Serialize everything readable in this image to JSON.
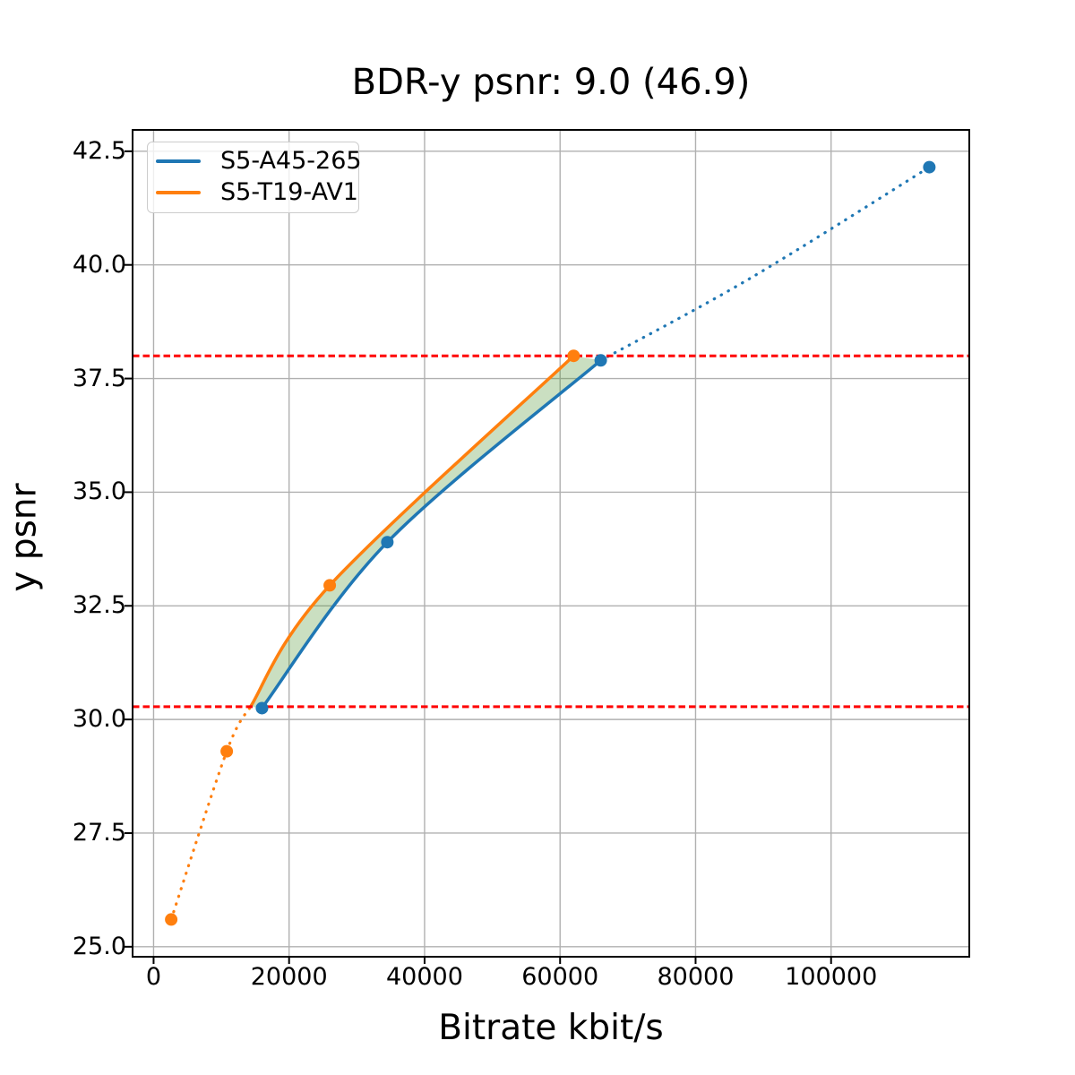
{
  "figure": {
    "title": "BDR-y psnr: 9.0 (46.9)",
    "xlabel": "Bitrate kbit/s",
    "ylabel": "y psnr"
  },
  "colors": {
    "grid": "#b0b0b0",
    "spine": "#000000",
    "background": "#ffffff",
    "fill": "#509632",
    "fill_opacity": 0.3,
    "hline": "#ff0000",
    "legend_border": "#cccccc"
  },
  "chart_data": {
    "type": "line",
    "title": "BDR-y psnr: 9.0 (46.9)",
    "xlabel": "Bitrate kbit/s",
    "ylabel": "y psnr",
    "grid": true,
    "legend_position": "upper left",
    "xlim": [
      -3100,
      120400
    ],
    "ylim": [
      24.78,
      42.97
    ],
    "xticks": [
      0,
      20000,
      40000,
      60000,
      80000,
      100000
    ],
    "yticks": [
      25.0,
      27.5,
      30.0,
      32.5,
      35.0,
      37.5,
      40.0,
      42.5
    ],
    "hlines": {
      "values": [
        30.28,
        38.0
      ],
      "color": "#ff0000",
      "style": "dashed",
      "description": "overlapping psnr interval bounds used for BD-rate computation"
    },
    "fill_between": {
      "color": "#509632",
      "opacity": 0.3,
      "description": "shaded area between the two RD curves across the overlapping psnr range 30.28 to 38.0"
    },
    "series": [
      {
        "name": "S5-A45-265",
        "color": "#1f77b4",
        "points": [
          [
            16000,
            30.25
          ],
          [
            34500,
            33.9
          ],
          [
            66000,
            37.9
          ],
          [
            114500,
            42.15
          ]
        ],
        "solid_segment": [
          [
            16000,
            30.25
          ],
          [
            34500,
            33.9
          ],
          [
            66000,
            37.9
          ]
        ],
        "dotted_segment": [
          [
            66000,
            37.9
          ],
          [
            88000,
            39.7
          ],
          [
            114500,
            42.15
          ]
        ]
      },
      {
        "name": "S5-T19-AV1",
        "color": "#ff7f0e",
        "points": [
          [
            2600,
            25.6
          ],
          [
            10800,
            29.3
          ],
          [
            26000,
            32.95
          ],
          [
            62000,
            38.0
          ]
        ],
        "solid_segment": [
          [
            14300,
            30.28
          ],
          [
            26000,
            32.95
          ],
          [
            62000,
            38.0
          ]
        ],
        "dotted_segment": [
          [
            2600,
            25.6
          ],
          [
            10800,
            29.3
          ],
          [
            14300,
            30.28
          ]
        ]
      }
    ]
  }
}
